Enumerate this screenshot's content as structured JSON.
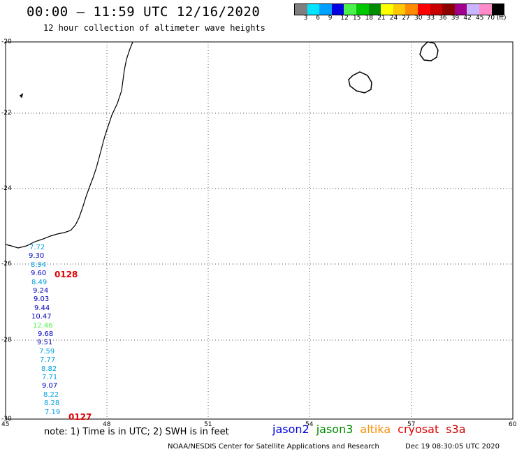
{
  "header": {
    "title": "00:00 – 11:59 UTC 12/16/2020",
    "subtitle": "12 hour collection of altimeter wave heights"
  },
  "color_scale": {
    "colors": [
      "#7f7f7f",
      "#00e5ff",
      "#00a0ff",
      "#0000e0",
      "#4cf24c",
      "#00c800",
      "#008c00",
      "#ffff00",
      "#ffc800",
      "#ff8c00",
      "#ff0000",
      "#c80000",
      "#8c0000",
      "#a0008c",
      "#c8b4ff",
      "#ff8cc8",
      "#000000"
    ],
    "labels": [
      "3",
      "6",
      "9",
      "12",
      "15",
      "18",
      "21",
      "24",
      "27",
      "30",
      "33",
      "36",
      "39",
      "42",
      "45",
      "70 (ft)"
    ]
  },
  "map": {
    "lon_ticks": [
      "45",
      "48",
      "51",
      "54",
      "57",
      "60"
    ],
    "lat_ticks": [
      "-20",
      "-22",
      "-24",
      "-26",
      "-28",
      "-30"
    ],
    "observations": [
      {
        "value": "7.72",
        "color": "#00a0e0"
      },
      {
        "value": "9.30",
        "color": "#0000c0"
      },
      {
        "value": "8.94",
        "color": "#00a0e0"
      },
      {
        "value": "9.60",
        "color": "#0000c0"
      },
      {
        "value": "8.49",
        "color": "#00a0e0"
      },
      {
        "value": "9.24",
        "color": "#0000c0"
      },
      {
        "value": "9.03",
        "color": "#0000c0"
      },
      {
        "value": "9.44",
        "color": "#0000c0"
      },
      {
        "value": "10.47",
        "color": "#0000c0"
      },
      {
        "value": "12.46",
        "color": "#4cf24c"
      },
      {
        "value": "9.68",
        "color": "#0000c0"
      },
      {
        "value": "9.51",
        "color": "#0000c0"
      },
      {
        "value": "7.59",
        "color": "#00a0e0"
      },
      {
        "value": "7.77",
        "color": "#00a0e0"
      },
      {
        "value": "8.82",
        "color": "#00a0e0"
      },
      {
        "value": "7.71",
        "color": "#00a0e0"
      },
      {
        "value": "9.07",
        "color": "#0000c0"
      },
      {
        "value": "8.22",
        "color": "#00a0e0"
      },
      {
        "value": "8.28",
        "color": "#00a0e0"
      },
      {
        "value": "7.19",
        "color": "#00a0e0"
      }
    ],
    "time_labels": [
      "0128",
      "0127"
    ]
  },
  "footer": {
    "note": "note: 1) Time is in UTC; 2) SWH is in feet",
    "satellites": [
      {
        "name": "jason2",
        "color": "#0000e0"
      },
      {
        "name": "jason3",
        "color": "#008c00"
      },
      {
        "name": "altika",
        "color": "#ff8c00"
      },
      {
        "name": "cryosat",
        "color": "#e00000"
      },
      {
        "name": "s3a",
        "color": "#c80000"
      }
    ],
    "credit": "NOAA/NESDIS Center for Satellite Applications and Research",
    "timestamp": "Dec 19 08:30:05 UTC 2020"
  }
}
